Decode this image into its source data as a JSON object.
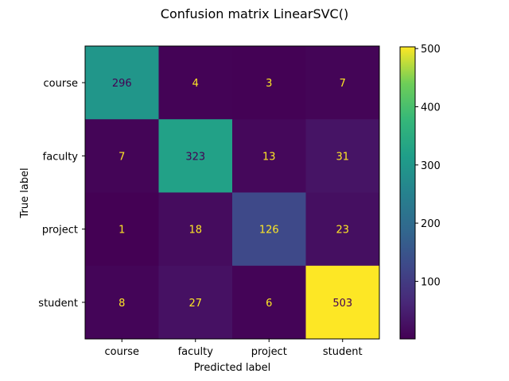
{
  "chart_data": {
    "type": "heatmap",
    "title": "Confusion matrix LinearSVC()",
    "xlabel": "Predicted label",
    "ylabel": "True label",
    "x_categories": [
      "course",
      "faculty",
      "project",
      "student"
    ],
    "y_categories": [
      "course",
      "faculty",
      "project",
      "student"
    ],
    "matrix": [
      [
        296,
        4,
        3,
        7
      ],
      [
        7,
        323,
        13,
        31
      ],
      [
        1,
        18,
        126,
        23
      ],
      [
        8,
        27,
        6,
        503
      ]
    ],
    "colormap": "viridis",
    "colorbar": {
      "range": [
        1,
        503
      ],
      "ticks": [
        100,
        200,
        300,
        400,
        500
      ]
    },
    "grid": false
  }
}
